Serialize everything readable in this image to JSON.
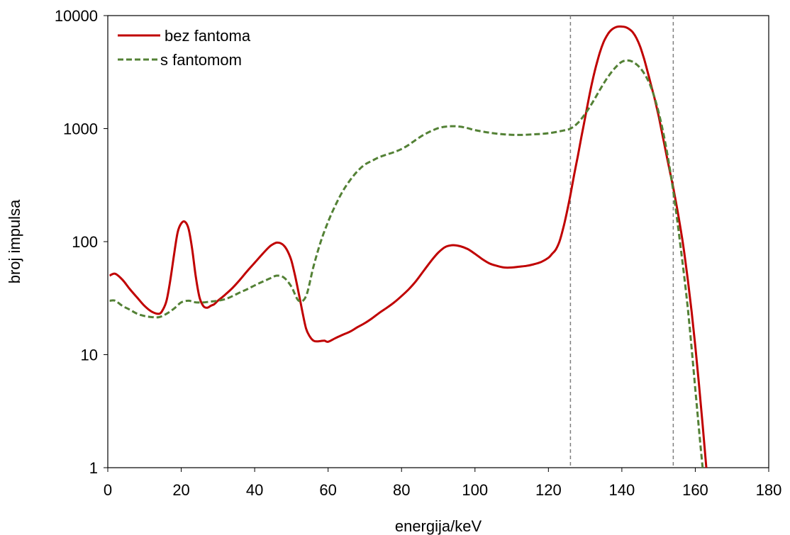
{
  "chart_data": {
    "type": "line",
    "title": "",
    "xlabel": "energija/keV",
    "ylabel": "broj impulsa",
    "xlim": [
      0,
      180
    ],
    "ylim": [
      1,
      10000
    ],
    "yscale": "log",
    "grid": false,
    "legend_position": "top-left",
    "x_ticks": [
      "0",
      "20",
      "40",
      "60",
      "80",
      "100",
      "120",
      "140",
      "160",
      "180"
    ],
    "y_ticks": [
      "1",
      "10",
      "100",
      "1000",
      "10000"
    ],
    "reference_lines": [
      {
        "x": 126,
        "style": "dashed",
        "color": "#7f7f7f"
      },
      {
        "x": 154,
        "style": "dashed",
        "color": "#7f7f7f"
      }
    ],
    "series": [
      {
        "name": "bez fantoma",
        "color": "#c00000",
        "style": "solid",
        "x": [
          0.5,
          2,
          4,
          6,
          8,
          10,
          12,
          14,
          15,
          16,
          17,
          18,
          19,
          20,
          21,
          22,
          23,
          24,
          25,
          26,
          27,
          28,
          29,
          30,
          32,
          34,
          36,
          38,
          40,
          42,
          44,
          45,
          46,
          47,
          48,
          49,
          50,
          51,
          52,
          53,
          54,
          55,
          56,
          57,
          58,
          59,
          60,
          62,
          64,
          66,
          68,
          70,
          72,
          74,
          76,
          78,
          80,
          82,
          84,
          86,
          88,
          90,
          92,
          94,
          96,
          98,
          100,
          102,
          104,
          106,
          108,
          110,
          112,
          114,
          116,
          118,
          120,
          121,
          122,
          123,
          124,
          125,
          126,
          127,
          128,
          129,
          130,
          131,
          132,
          133,
          134,
          135,
          136,
          137,
          138,
          139,
          140,
          141,
          142,
          143,
          144,
          145,
          146,
          147,
          148,
          149,
          150,
          151,
          152,
          153,
          154,
          155,
          156,
          157,
          158,
          159,
          160,
          161,
          162,
          163
        ],
        "y": [
          50,
          52,
          46,
          38,
          32,
          27,
          24,
          23,
          25,
          30,
          45,
          75,
          120,
          145,
          150,
          130,
          85,
          48,
          32,
          27,
          26,
          27,
          28,
          30,
          34,
          39,
          46,
          55,
          65,
          77,
          90,
          95,
          98,
          97,
          92,
          82,
          68,
          50,
          35,
          24,
          17,
          14.5,
          13.3,
          13.1,
          13.2,
          13.3,
          13,
          14,
          15,
          16,
          17.5,
          19,
          21,
          23.5,
          26,
          29,
          33,
          38,
          45,
          55,
          67,
          80,
          90,
          93,
          91,
          86,
          78,
          70,
          64,
          61,
          59,
          59,
          60,
          61,
          63,
          66,
          72,
          78,
          85,
          100,
          130,
          180,
          260,
          390,
          570,
          850,
          1250,
          1850,
          2650,
          3600,
          4700,
          5800,
          6700,
          7400,
          7800,
          8000,
          8000,
          7900,
          7600,
          7100,
          6300,
          5300,
          4200,
          3200,
          2400,
          1800,
          1300,
          900,
          620,
          430,
          300,
          200,
          130,
          80,
          45,
          24,
          12,
          5.5,
          2.4,
          1
        ]
      },
      {
        "name": "s fantomom",
        "color": "#538135",
        "style": "dashed",
        "x": [
          0.5,
          2,
          4,
          6,
          8,
          10,
          12,
          14,
          16,
          18,
          20,
          22,
          24,
          26,
          28,
          30,
          32,
          34,
          36,
          38,
          40,
          42,
          44,
          46,
          48,
          50,
          52,
          54,
          56,
          58,
          60,
          62,
          64,
          66,
          68,
          70,
          72,
          74,
          76,
          78,
          80,
          82,
          84,
          86,
          88,
          90,
          92,
          94,
          96,
          98,
          100,
          104,
          108,
          112,
          116,
          120,
          124,
          126,
          128,
          130,
          132,
          134,
          136,
          138,
          140,
          142,
          144,
          146,
          148,
          150,
          152,
          154,
          156,
          158,
          160,
          161,
          162
        ],
        "y": [
          30,
          30,
          27,
          25,
          23,
          22,
          21.5,
          21.5,
          23,
          25.5,
          29,
          30,
          29,
          29,
          29.5,
          30,
          31,
          33,
          35.5,
          38,
          41,
          44,
          47,
          50,
          48,
          40,
          30,
          33,
          60,
          100,
          150,
          210,
          280,
          350,
          420,
          480,
          520,
          560,
          590,
          620,
          660,
          720,
          800,
          880,
          950,
          1010,
          1040,
          1050,
          1040,
          1010,
          970,
          920,
          890,
          880,
          890,
          910,
          960,
          1000,
          1120,
          1350,
          1700,
          2200,
          2800,
          3400,
          3900,
          4000,
          3700,
          3100,
          2300,
          1400,
          700,
          280,
          90,
          25,
          5,
          2.2,
          1
        ]
      }
    ]
  }
}
